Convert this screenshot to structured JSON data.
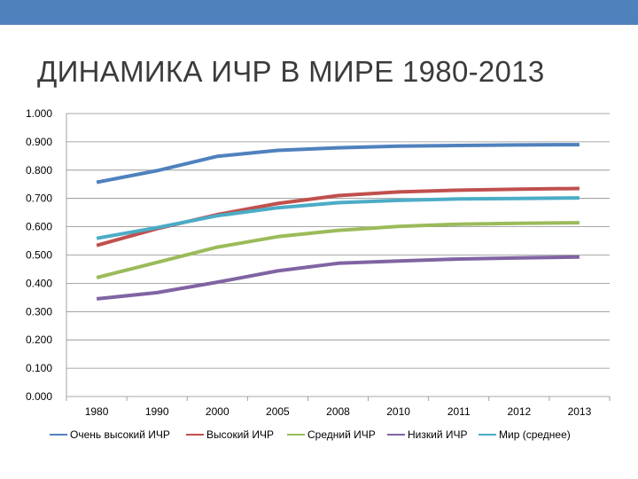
{
  "slide": {
    "title": "ДИНАМИКА ИЧР В МИРЕ 1980-2013",
    "top_bar_color": "#4f81bd"
  },
  "chart_data": {
    "type": "line",
    "categories": [
      "1980",
      "1990",
      "2000",
      "2005",
      "2008",
      "2010",
      "2011",
      "2012",
      "2013"
    ],
    "y_tick_labels": [
      "0.000",
      "0.100",
      "0.200",
      "0.300",
      "0.400",
      "0.500",
      "0.600",
      "0.700",
      "0.800",
      "0.900",
      "1.000"
    ],
    "ylim": [
      0,
      1
    ],
    "grid": true,
    "legend_position": "bottom",
    "series": [
      {
        "name": "Очень высокий ИЧР",
        "color": "#4f81bd",
        "values": [
          0.757,
          0.798,
          0.849,
          0.87,
          0.879,
          0.885,
          0.887,
          0.889,
          0.89
        ]
      },
      {
        "name": "Высокий ИЧР",
        "color": "#c0504d",
        "values": [
          0.534,
          0.593,
          0.643,
          0.682,
          0.71,
          0.723,
          0.729,
          0.733,
          0.735
        ]
      },
      {
        "name": "Средний ИЧР",
        "color": "#9bbb59",
        "values": [
          0.42,
          0.474,
          0.528,
          0.565,
          0.587,
          0.601,
          0.609,
          0.612,
          0.614
        ]
      },
      {
        "name": "Низкий ИЧР",
        "color": "#8064a2",
        "values": [
          0.345,
          0.367,
          0.404,
          0.444,
          0.471,
          0.479,
          0.486,
          0.49,
          0.493
        ]
      },
      {
        "name": "Мир (среднее)",
        "color": "#4bacc6",
        "values": [
          0.559,
          0.597,
          0.639,
          0.667,
          0.685,
          0.693,
          0.698,
          0.7,
          0.702
        ]
      }
    ]
  }
}
